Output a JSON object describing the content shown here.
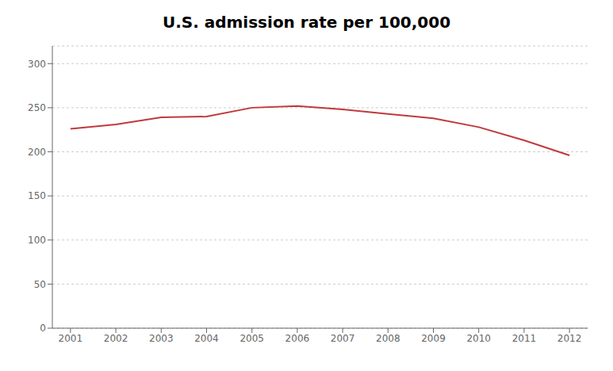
{
  "chart_data": {
    "type": "line",
    "title": "U.S. admission rate per 100,000",
    "x": [
      2001,
      2002,
      2003,
      2004,
      2005,
      2006,
      2007,
      2008,
      2009,
      2010,
      2011,
      2012
    ],
    "values": [
      226,
      231,
      239,
      240,
      250,
      252,
      248,
      243,
      238,
      228,
      213,
      196
    ],
    "color": "#c0393b",
    "xlim": [
      2000.6,
      2012.4
    ],
    "xticks": [
      2001,
      2002,
      2003,
      2004,
      2005,
      2006,
      2007,
      2008,
      2009,
      2010,
      2011,
      2012
    ],
    "ylim": [
      0,
      320
    ],
    "yticks": [
      0,
      50,
      100,
      150,
      200,
      250,
      300
    ],
    "grid": "y"
  }
}
